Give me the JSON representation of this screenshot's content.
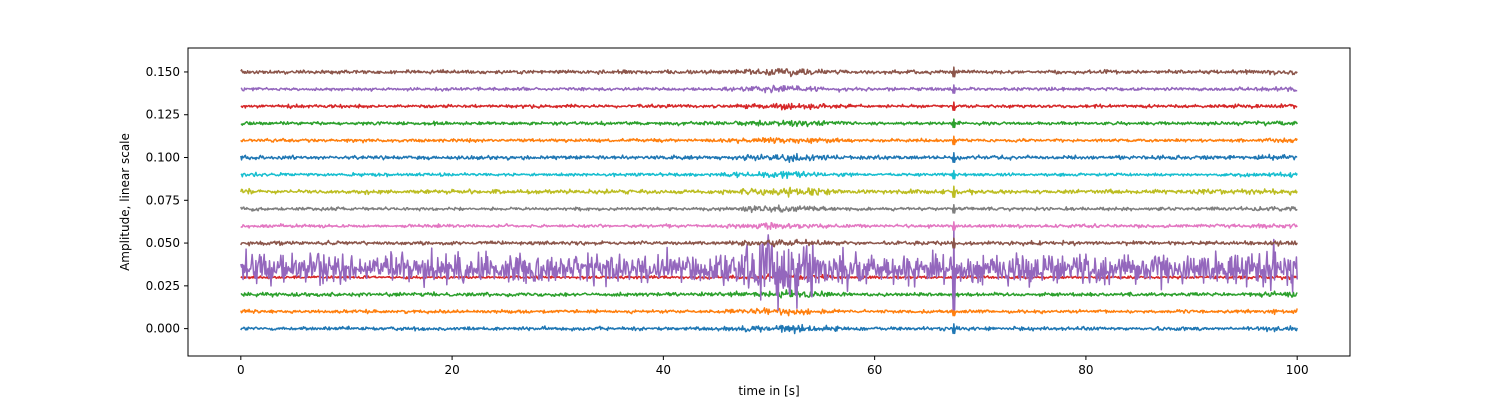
{
  "chart_data": {
    "type": "line",
    "title": "",
    "xlabel": "time in [s]",
    "ylabel": "Amplitude, linear scale",
    "xlim": [
      -5,
      105
    ],
    "ylim": [
      -0.016,
      0.164
    ],
    "x_range": [
      0,
      100
    ],
    "xticks": [
      0,
      20,
      40,
      60,
      80,
      100
    ],
    "xtick_labels": [
      "0",
      "20",
      "40",
      "60",
      "80",
      "100"
    ],
    "yticks": [
      0.0,
      0.025,
      0.05,
      0.075,
      0.1,
      0.125,
      0.15
    ],
    "ytick_labels": [
      "0.000",
      "0.025",
      "0.050",
      "0.075",
      "0.100",
      "0.125",
      "0.150"
    ],
    "grid": false,
    "legend": "none",
    "event_time": 67.5,
    "burst_window": [
      48,
      55
    ],
    "series": [
      {
        "offset": 0.0,
        "amplitude": 0.0007,
        "color": "#1f77b4"
      },
      {
        "offset": 0.01,
        "amplitude": 0.0006,
        "color": "#ff7f0e"
      },
      {
        "offset": 0.02,
        "amplitude": 0.0007,
        "color": "#2ca02c"
      },
      {
        "offset": 0.03,
        "amplitude": 0.0005,
        "color": "#d62728"
      },
      {
        "offset": 0.035,
        "amplitude": 0.006,
        "color": "#9467bd"
      },
      {
        "offset": 0.05,
        "amplitude": 0.0007,
        "color": "#8c564b"
      },
      {
        "offset": 0.06,
        "amplitude": 0.0006,
        "color": "#e377c2"
      },
      {
        "offset": 0.07,
        "amplitude": 0.0006,
        "color": "#7f7f7f"
      },
      {
        "offset": 0.08,
        "amplitude": 0.0008,
        "color": "#bcbd22"
      },
      {
        "offset": 0.09,
        "amplitude": 0.0006,
        "color": "#17becf"
      },
      {
        "offset": 0.1,
        "amplitude": 0.0007,
        "color": "#1f77b4"
      },
      {
        "offset": 0.11,
        "amplitude": 0.0006,
        "color": "#ff7f0e"
      },
      {
        "offset": 0.12,
        "amplitude": 0.0006,
        "color": "#2ca02c"
      },
      {
        "offset": 0.13,
        "amplitude": 0.0006,
        "color": "#d62728"
      },
      {
        "offset": 0.14,
        "amplitude": 0.0006,
        "color": "#9467bd"
      },
      {
        "offset": 0.15,
        "amplitude": 0.0007,
        "color": "#8c564b"
      }
    ]
  }
}
